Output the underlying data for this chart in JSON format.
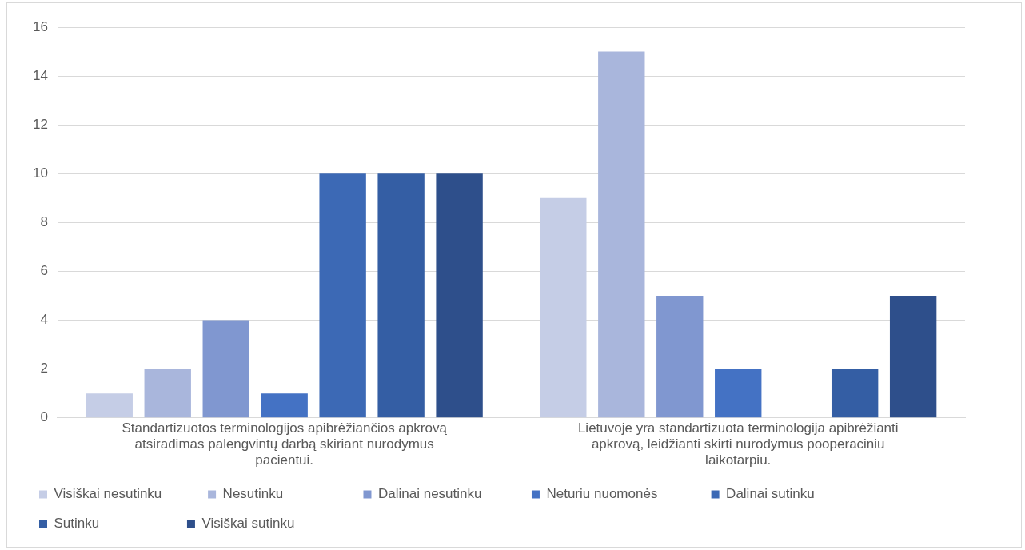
{
  "chart_data": {
    "type": "bar",
    "categories": [
      "Standartizuotos terminologijos apibrėžiančios apkrovą atsiradimas palengvintų darbą skiriant nurodymus pacientui.",
      "Lietuvoje yra standartizuota terminologija apibrėžianti apkrovą, leidžianti skirti nurodymus pooperaciniu laikotarpiu."
    ],
    "series": [
      {
        "name": "Visiškai nesutinku",
        "color": "#c5cde6",
        "values": [
          1,
          9
        ]
      },
      {
        "name": "Nesutinku",
        "color": "#a9b6dc",
        "values": [
          2,
          15
        ]
      },
      {
        "name": "Dalinai nesutinku",
        "color": "#8097d0",
        "values": [
          4,
          5
        ]
      },
      {
        "name": "Neturiu nuomonės",
        "color": "#4472c4",
        "values": [
          1,
          2
        ]
      },
      {
        "name": "Dalinai sutinku",
        "color": "#3c69b5",
        "values": [
          10,
          0
        ]
      },
      {
        "name": "Sutinku",
        "color": "#345ea4",
        "values": [
          10,
          2
        ]
      },
      {
        "name": "Visiškai sutinku",
        "color": "#2e4f8b",
        "values": [
          10,
          5
        ]
      }
    ],
    "ylim": [
      0,
      16
    ],
    "yticks": [
      0,
      2,
      4,
      6,
      8,
      10,
      12,
      14,
      16
    ],
    "grid": "y",
    "legend": "bottom"
  }
}
